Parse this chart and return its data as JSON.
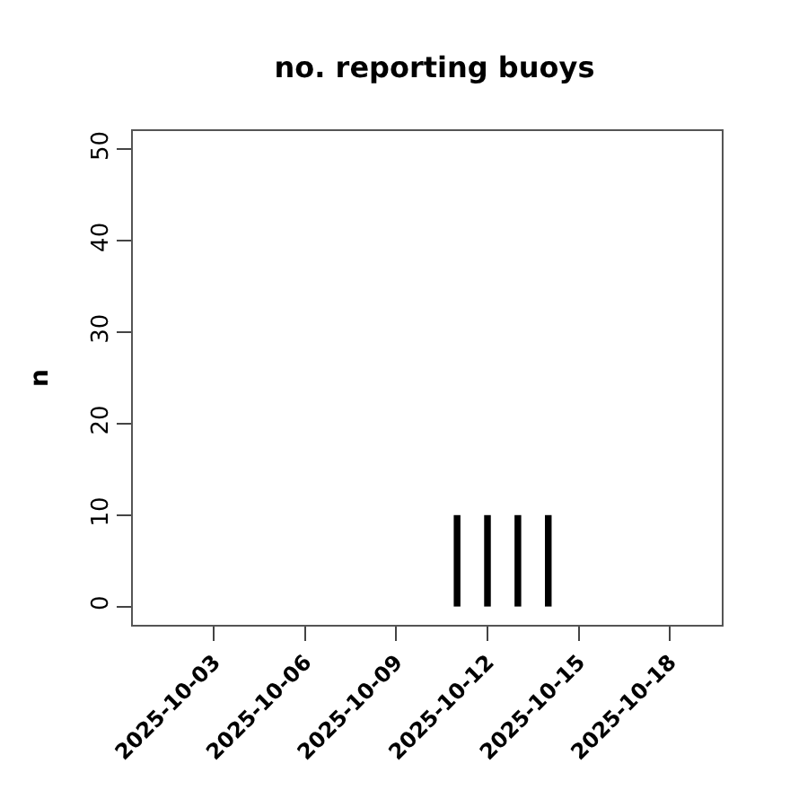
{
  "chart_data": {
    "type": "bar",
    "title": "no. reporting buoys",
    "ylabel": "n",
    "x": [
      "2025-10-02",
      "2025-10-03",
      "2025-10-04",
      "2025-10-05",
      "2025-10-06",
      "2025-10-07",
      "2025-10-08",
      "2025-10-09",
      "2025-10-10",
      "2025-10-11",
      "2025-10-12",
      "2025-10-13",
      "2025-10-14",
      "2025-10-15",
      "2025-10-16",
      "2025-10-17",
      "2025-10-18"
    ],
    "values": [
      0,
      0,
      0,
      0,
      0,
      0,
      0,
      0,
      0,
      10,
      10,
      10,
      10,
      0,
      0,
      0,
      0
    ],
    "color": "#000000",
    "xlim": [
      "2025-09-30T08:00",
      "2025-10-19T17:00"
    ],
    "xticks": [
      "2025-10-03",
      "2025-10-06",
      "2025-10-09",
      "2025-10-12",
      "2025-10-15",
      "2025-10-18"
    ],
    "ylim": [
      -2,
      52
    ],
    "yticks": [
      0,
      10,
      20,
      30,
      40,
      50
    ],
    "grid": false
  }
}
